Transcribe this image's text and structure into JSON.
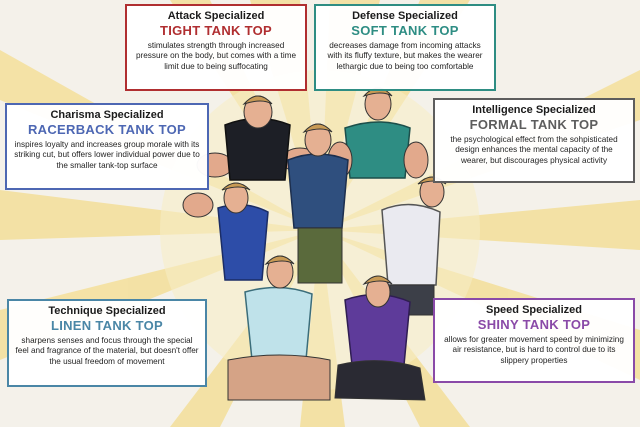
{
  "colors": {
    "background": "#f4f1ea",
    "burst": "#f3df9a",
    "attack": "#b02e30",
    "defense": "#2e8d83",
    "charisma": "#4d67b3",
    "intelligence": "#5d5d5d",
    "technique": "#4a86a6",
    "speed": "#8a4aa8"
  },
  "boxes": {
    "attack": {
      "heading": "Attack Specialized",
      "title": "TIGHT TANK TOP",
      "desc": "stimulates strength through increased pressure on the body, but comes with a time limit due to being suffocating"
    },
    "defense": {
      "heading": "Defense Specialized",
      "title": "SOFT TANK TOP",
      "desc": "decreases damage from incoming attacks with its fluffy texture, but makes the wearer lethargic due to being too comfortable"
    },
    "charisma": {
      "heading": "Charisma Specialized",
      "title": "RACERBACK TANK TOP",
      "desc": "inspires loyalty and increases group morale with its striking cut, but offers lower individual power due to the smaller tank-top surface"
    },
    "intelligence": {
      "heading": "Intelligence Specialized",
      "title": "FORMAL TANK TOP",
      "desc": "the psychological effect from the sohpisticated design enhances the mental capacity of the wearer, but discourages physical activity"
    },
    "technique": {
      "heading": "Technique Specialized",
      "title": "LINEN TANK TOP",
      "desc": "sharpens senses and focus through the special feel and fragrance of the material, but doesn't offer the usual freedom of movement"
    },
    "speed": {
      "heading": "Speed Specialized",
      "title": "SHINY TANK TOP",
      "desc": "allows for greater movement speed by minimizing air resistance, but is hard to control due to its slippery properties"
    }
  }
}
